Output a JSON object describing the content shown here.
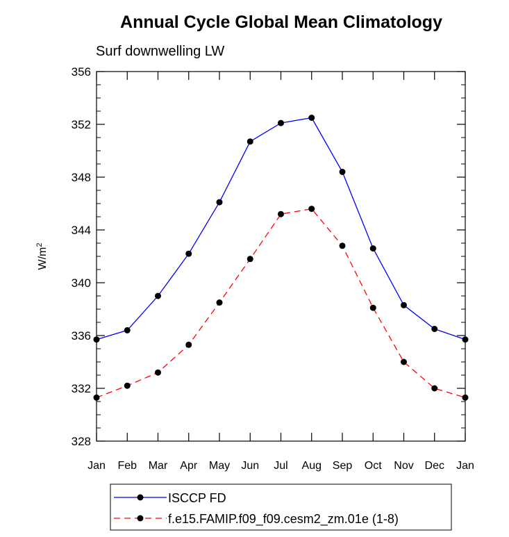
{
  "chart_data": {
    "type": "line",
    "title": "Annual Cycle Global Mean Climatology",
    "subtitle": "Surf downwelling LW",
    "ylabel": "W/m",
    "ylabel_sup": "2",
    "xlabel": "",
    "categories": [
      "Jan",
      "Feb",
      "Mar",
      "Apr",
      "May",
      "Jun",
      "Jul",
      "Aug",
      "Sep",
      "Oct",
      "Nov",
      "Dec",
      "Jan"
    ],
    "ylim": [
      328,
      356
    ],
    "yticks": [
      "328",
      "332",
      "336",
      "340",
      "344",
      "348",
      "352",
      "356"
    ],
    "grid": false,
    "legend_position": "bottom",
    "series": [
      {
        "name": "ISCCP FD",
        "color": "#0000ff",
        "line_style": "solid",
        "marker": "filled-circle",
        "values": [
          335.7,
          336.4,
          339.0,
          342.2,
          346.1,
          350.7,
          352.1,
          352.5,
          348.4,
          342.6,
          338.3,
          336.5,
          335.7
        ]
      },
      {
        "name": "f.e15.FAMIP.f09_f09.cesm2_zm.01e (1-8)",
        "color": "#ff0000",
        "line_style": "dashed",
        "marker": "filled-circle",
        "values": [
          331.3,
          332.2,
          333.2,
          335.3,
          338.5,
          341.8,
          345.2,
          345.6,
          342.8,
          338.1,
          334.0,
          332.0,
          331.3
        ]
      }
    ]
  }
}
